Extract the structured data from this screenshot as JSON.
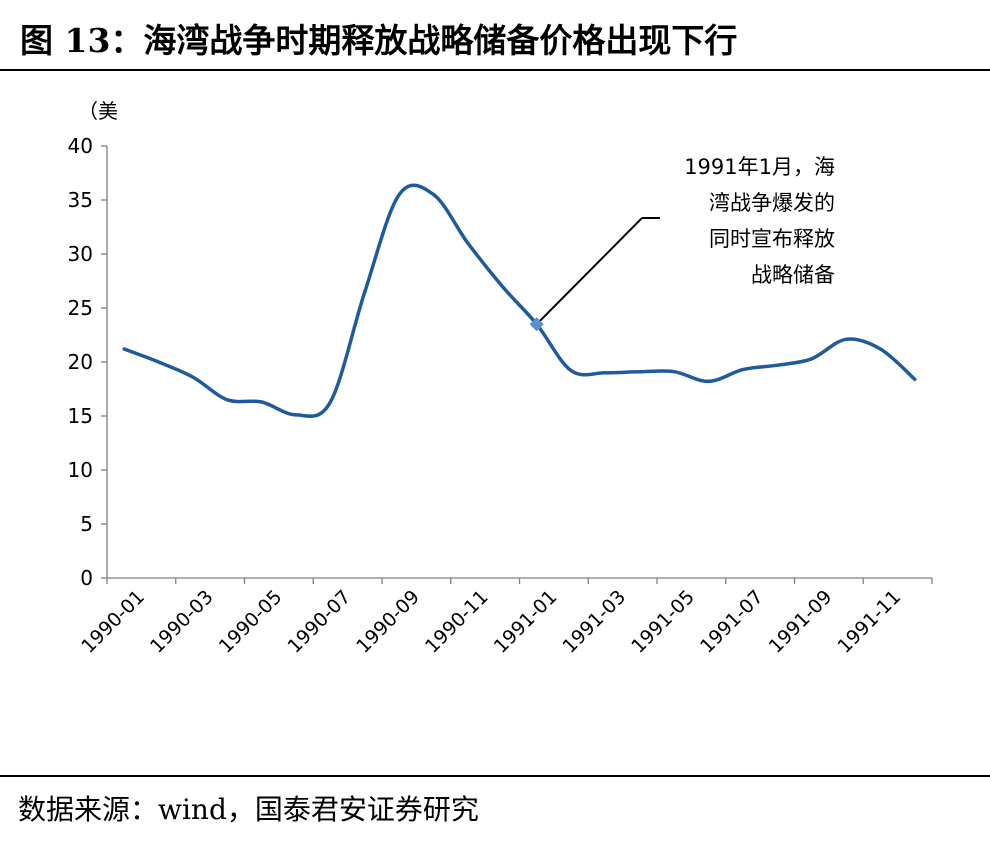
{
  "figure": {
    "title": "图 13：海湾战争时期释放战略储备价格出现下行",
    "source": "数据来源：wind，国泰君安证券研究"
  },
  "chart_data": {
    "type": "line",
    "ylabel": "（美",
    "ylim": [
      0,
      40
    ],
    "yticks": [
      0,
      5,
      10,
      15,
      20,
      25,
      30,
      35,
      40
    ],
    "categories": [
      "1990-01",
      "1990-02",
      "1990-03",
      "1990-04",
      "1990-05",
      "1990-06",
      "1990-07",
      "1990-08",
      "1990-09",
      "1990-10",
      "1990-11",
      "1990-12",
      "1991-01",
      "1991-02",
      "1991-03",
      "1991-04",
      "1991-05",
      "1991-06",
      "1991-07",
      "1991-08",
      "1991-09",
      "1991-10",
      "1991-11",
      "1991-12"
    ],
    "xticklabels": [
      "1990-01",
      "1990-03",
      "1990-05",
      "1990-07",
      "1990-09",
      "1990-11",
      "1991-01",
      "1991-03",
      "1991-05",
      "1991-07",
      "1991-09",
      "1991-11"
    ],
    "series": [
      {
        "name": "",
        "color": "#1f5a9e",
        "x": [
          0,
          1,
          2,
          3,
          4,
          5,
          6,
          7,
          8,
          9,
          10,
          11,
          12,
          13,
          14,
          15,
          16,
          17,
          18,
          19,
          20,
          21,
          22,
          23
        ],
        "values": [
          21.2,
          20.0,
          18.6,
          16.5,
          16.3,
          15.1,
          16.3,
          26.5,
          35.5,
          35.5,
          31.0,
          27.0,
          23.5,
          19.2,
          19.0,
          19.1,
          19.1,
          18.2,
          19.3,
          19.7,
          20.3,
          22.1,
          21.2,
          18.4
        ]
      }
    ],
    "annotation": {
      "lines": [
        "1991年1月，海",
        "湾战争爆发的",
        "同时宣布释放",
        "战略储备"
      ],
      "point_index": 12,
      "point_value": 23.5
    },
    "grid": false,
    "legend": "none"
  }
}
